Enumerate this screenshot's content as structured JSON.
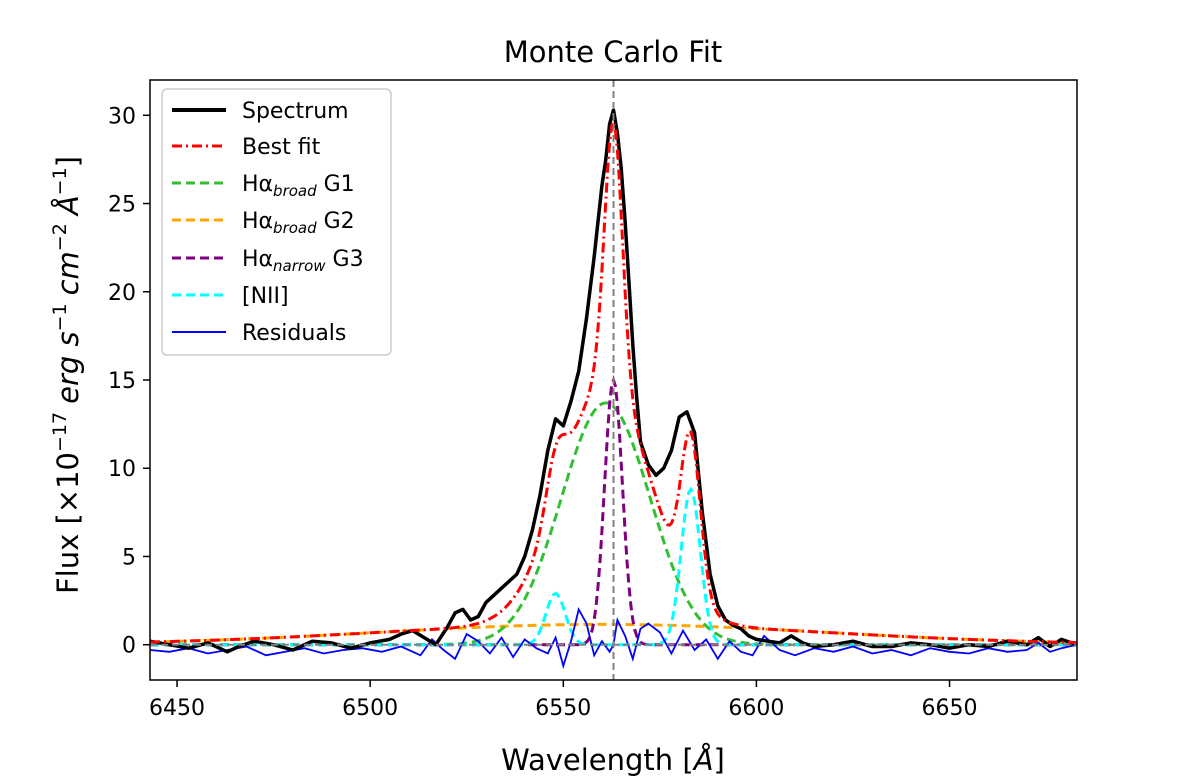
{
  "chart_data": {
    "type": "line",
    "title": "Monte Carlo Fit",
    "xlabel_main": "Wavelength [",
    "xlabel_unit": "Å",
    "xlabel_close": "]",
    "ylabel_main": "Flux [×10",
    "ylabel_exp": "−17",
    "ylabel_units": "erg s",
    "ylabel_s_exp": "−1",
    "ylabel_cm": "cm",
    "ylabel_cm_exp": "−2",
    "ylabel_A": "Å",
    "ylabel_A_exp": "−1",
    "ylabel_close": "]",
    "xlim": [
      6443,
      6683
    ],
    "ylim": [
      -2,
      32
    ],
    "xticks": [
      6450,
      6500,
      6550,
      6600,
      6650
    ],
    "yticks": [
      0,
      5,
      10,
      15,
      20,
      25,
      30
    ],
    "vline_x": 6563,
    "hline_y": 0,
    "legend_position": "upper-left",
    "legend": [
      {
        "label": "Spectrum"
      },
      {
        "label": "Best fit"
      },
      {
        "label": "Hα",
        "sub": "broad",
        "suffix": " G1"
      },
      {
        "label": "Hα",
        "sub": "broad",
        "suffix": " G2"
      },
      {
        "label": "Hα",
        "sub": "narrow",
        "suffix": " G3"
      },
      {
        "label": "[NII]"
      },
      {
        "label": "Residuals"
      }
    ],
    "series": [
      {
        "name": "Spectrum",
        "color": "#000000",
        "x": [
          6443,
          6448,
          6453,
          6458,
          6463,
          6466,
          6470,
          6475,
          6480,
          6485,
          6490,
          6495,
          6500,
          6505,
          6508,
          6511,
          6514,
          6517,
          6520,
          6522,
          6524,
          6526,
          6528,
          6530,
          6532,
          6534,
          6536,
          6538,
          6540,
          6542,
          6544,
          6546,
          6548,
          6550,
          6552,
          6554,
          6556,
          6558,
          6560,
          6561,
          6562,
          6563,
          6564,
          6565,
          6566,
          6567,
          6568,
          6569,
          6570,
          6572,
          6574,
          6576,
          6578,
          6580,
          6582,
          6584,
          6586,
          6588,
          6590,
          6592,
          6594,
          6596,
          6598,
          6600,
          6603,
          6606,
          6609,
          6612,
          6615,
          6620,
          6625,
          6630,
          6635,
          6640,
          6645,
          6650,
          6655,
          6660,
          6665,
          6670,
          6673,
          6676,
          6679,
          6683
        ],
        "y": [
          0.2,
          0.0,
          -0.2,
          0.1,
          -0.4,
          -0.1,
          0.2,
          0.0,
          -0.3,
          0.2,
          0.1,
          -0.2,
          0.1,
          0.3,
          0.6,
          0.8,
          0.4,
          0.0,
          1.0,
          1.8,
          2.0,
          1.4,
          1.6,
          2.4,
          2.8,
          3.2,
          3.6,
          4.0,
          5.0,
          6.5,
          8.5,
          11.0,
          12.8,
          12.4,
          13.8,
          15.5,
          18.5,
          22.0,
          26.0,
          27.5,
          29.5,
          30.3,
          29.0,
          27.0,
          24.0,
          20.5,
          17.0,
          14.0,
          11.5,
          10.2,
          9.6,
          10.0,
          11.0,
          12.9,
          13.2,
          12.0,
          7.5,
          4.0,
          2.2,
          1.4,
          1.1,
          0.9,
          0.5,
          0.3,
          0.2,
          0.1,
          0.5,
          0.1,
          -0.1,
          0.0,
          0.2,
          -0.1,
          -0.1,
          0.1,
          0.0,
          -0.2,
          0.0,
          -0.1,
          0.2,
          0.0,
          0.4,
          -0.1,
          0.3,
          0.0
        ]
      },
      {
        "name": "Best fit",
        "color": "#ff0000"
      },
      {
        "name": "Hα broad G1",
        "color": "#33bf33",
        "amp": 13.7,
        "center": 6561,
        "sigma": 11.5
      },
      {
        "name": "Hα broad G2",
        "color": "#ffa500",
        "amp": 1.15,
        "offset": 0.0,
        "center": 6560,
        "sigma": 58
      },
      {
        "name": "Hα narrow G3",
        "color": "#800080",
        "amp": 15.0,
        "center": 6563,
        "sigma": 2.3
      },
      {
        "name": "[NII]",
        "color": "#00ffff",
        "lines": [
          {
            "amp": 2.9,
            "center": 6548,
            "sigma": 2.5
          },
          {
            "amp": 8.8,
            "center": 6583,
            "sigma": 2.5
          }
        ]
      },
      {
        "name": "Residuals",
        "color": "#0000ff",
        "x": [
          6443,
          6448,
          6453,
          6458,
          6463,
          6468,
          6473,
          6478,
          6483,
          6488,
          6493,
          6498,
          6503,
          6508,
          6513,
          6516,
          6519,
          6522,
          6525,
          6528,
          6531,
          6534,
          6537,
          6540,
          6543,
          6546,
          6548,
          6550,
          6552,
          6554,
          6556,
          6558,
          6560,
          6562,
          6563,
          6564,
          6566,
          6568,
          6570,
          6572,
          6575,
          6578,
          6581,
          6584,
          6587,
          6590,
          6593,
          6596,
          6599,
          6602,
          6606,
          6610,
          6615,
          6620,
          6625,
          6630,
          6635,
          6640,
          6645,
          6650,
          6655,
          6660,
          6665,
          6670,
          6673,
          6676,
          6679,
          6683
        ],
        "y": [
          -0.3,
          -0.4,
          -0.2,
          -0.5,
          -0.3,
          -0.1,
          -0.6,
          -0.4,
          -0.2,
          -0.5,
          -0.3,
          -0.2,
          -0.4,
          -0.1,
          -0.6,
          0.3,
          -0.3,
          -0.8,
          0.6,
          0.2,
          -0.5,
          0.4,
          -0.7,
          0.3,
          -0.2,
          -0.5,
          0.4,
          -1.2,
          0.2,
          2.0,
          1.2,
          -0.6,
          0.2,
          -0.4,
          0.0,
          1.4,
          0.5,
          -0.8,
          0.9,
          1.2,
          0.7,
          -0.5,
          0.8,
          -0.3,
          0.3,
          -0.8,
          0.2,
          -0.4,
          -0.6,
          0.5,
          -0.3,
          -0.6,
          -0.2,
          -0.4,
          -0.1,
          -0.5,
          -0.3,
          -0.6,
          -0.2,
          -0.4,
          -0.5,
          -0.2,
          -0.4,
          -0.3,
          0.1,
          -0.4,
          -0.2,
          0.0
        ]
      }
    ]
  }
}
